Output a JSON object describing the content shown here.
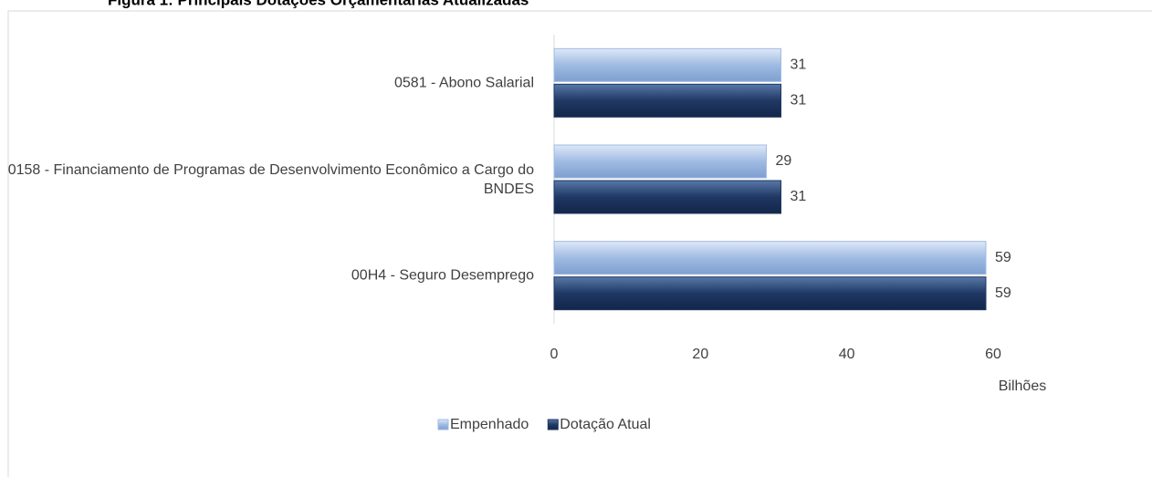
{
  "chart_data": {
    "type": "bar",
    "orientation": "horizontal",
    "title": "Figura 1: Principais Dotações Orçamentárias Atualizadas",
    "categories": [
      "0581 - Abono Salarial",
      "0158 - Financiamento de Programas de Desenvolvimento Econômico a Cargo do BNDES",
      "00H4 - Seguro Desemprego"
    ],
    "series": [
      {
        "name": "Empenhado",
        "color": "#9fbbe3",
        "values": [
          31,
          29,
          59
        ]
      },
      {
        "name": "Dotação Atual",
        "color": "#1f3864",
        "values": [
          31,
          31,
          59
        ]
      }
    ],
    "xlim": [
      0,
      60
    ],
    "xticks": [
      0,
      20,
      40,
      60
    ],
    "xlabel": "Bilhões",
    "grid": false,
    "legend": "bottom"
  }
}
